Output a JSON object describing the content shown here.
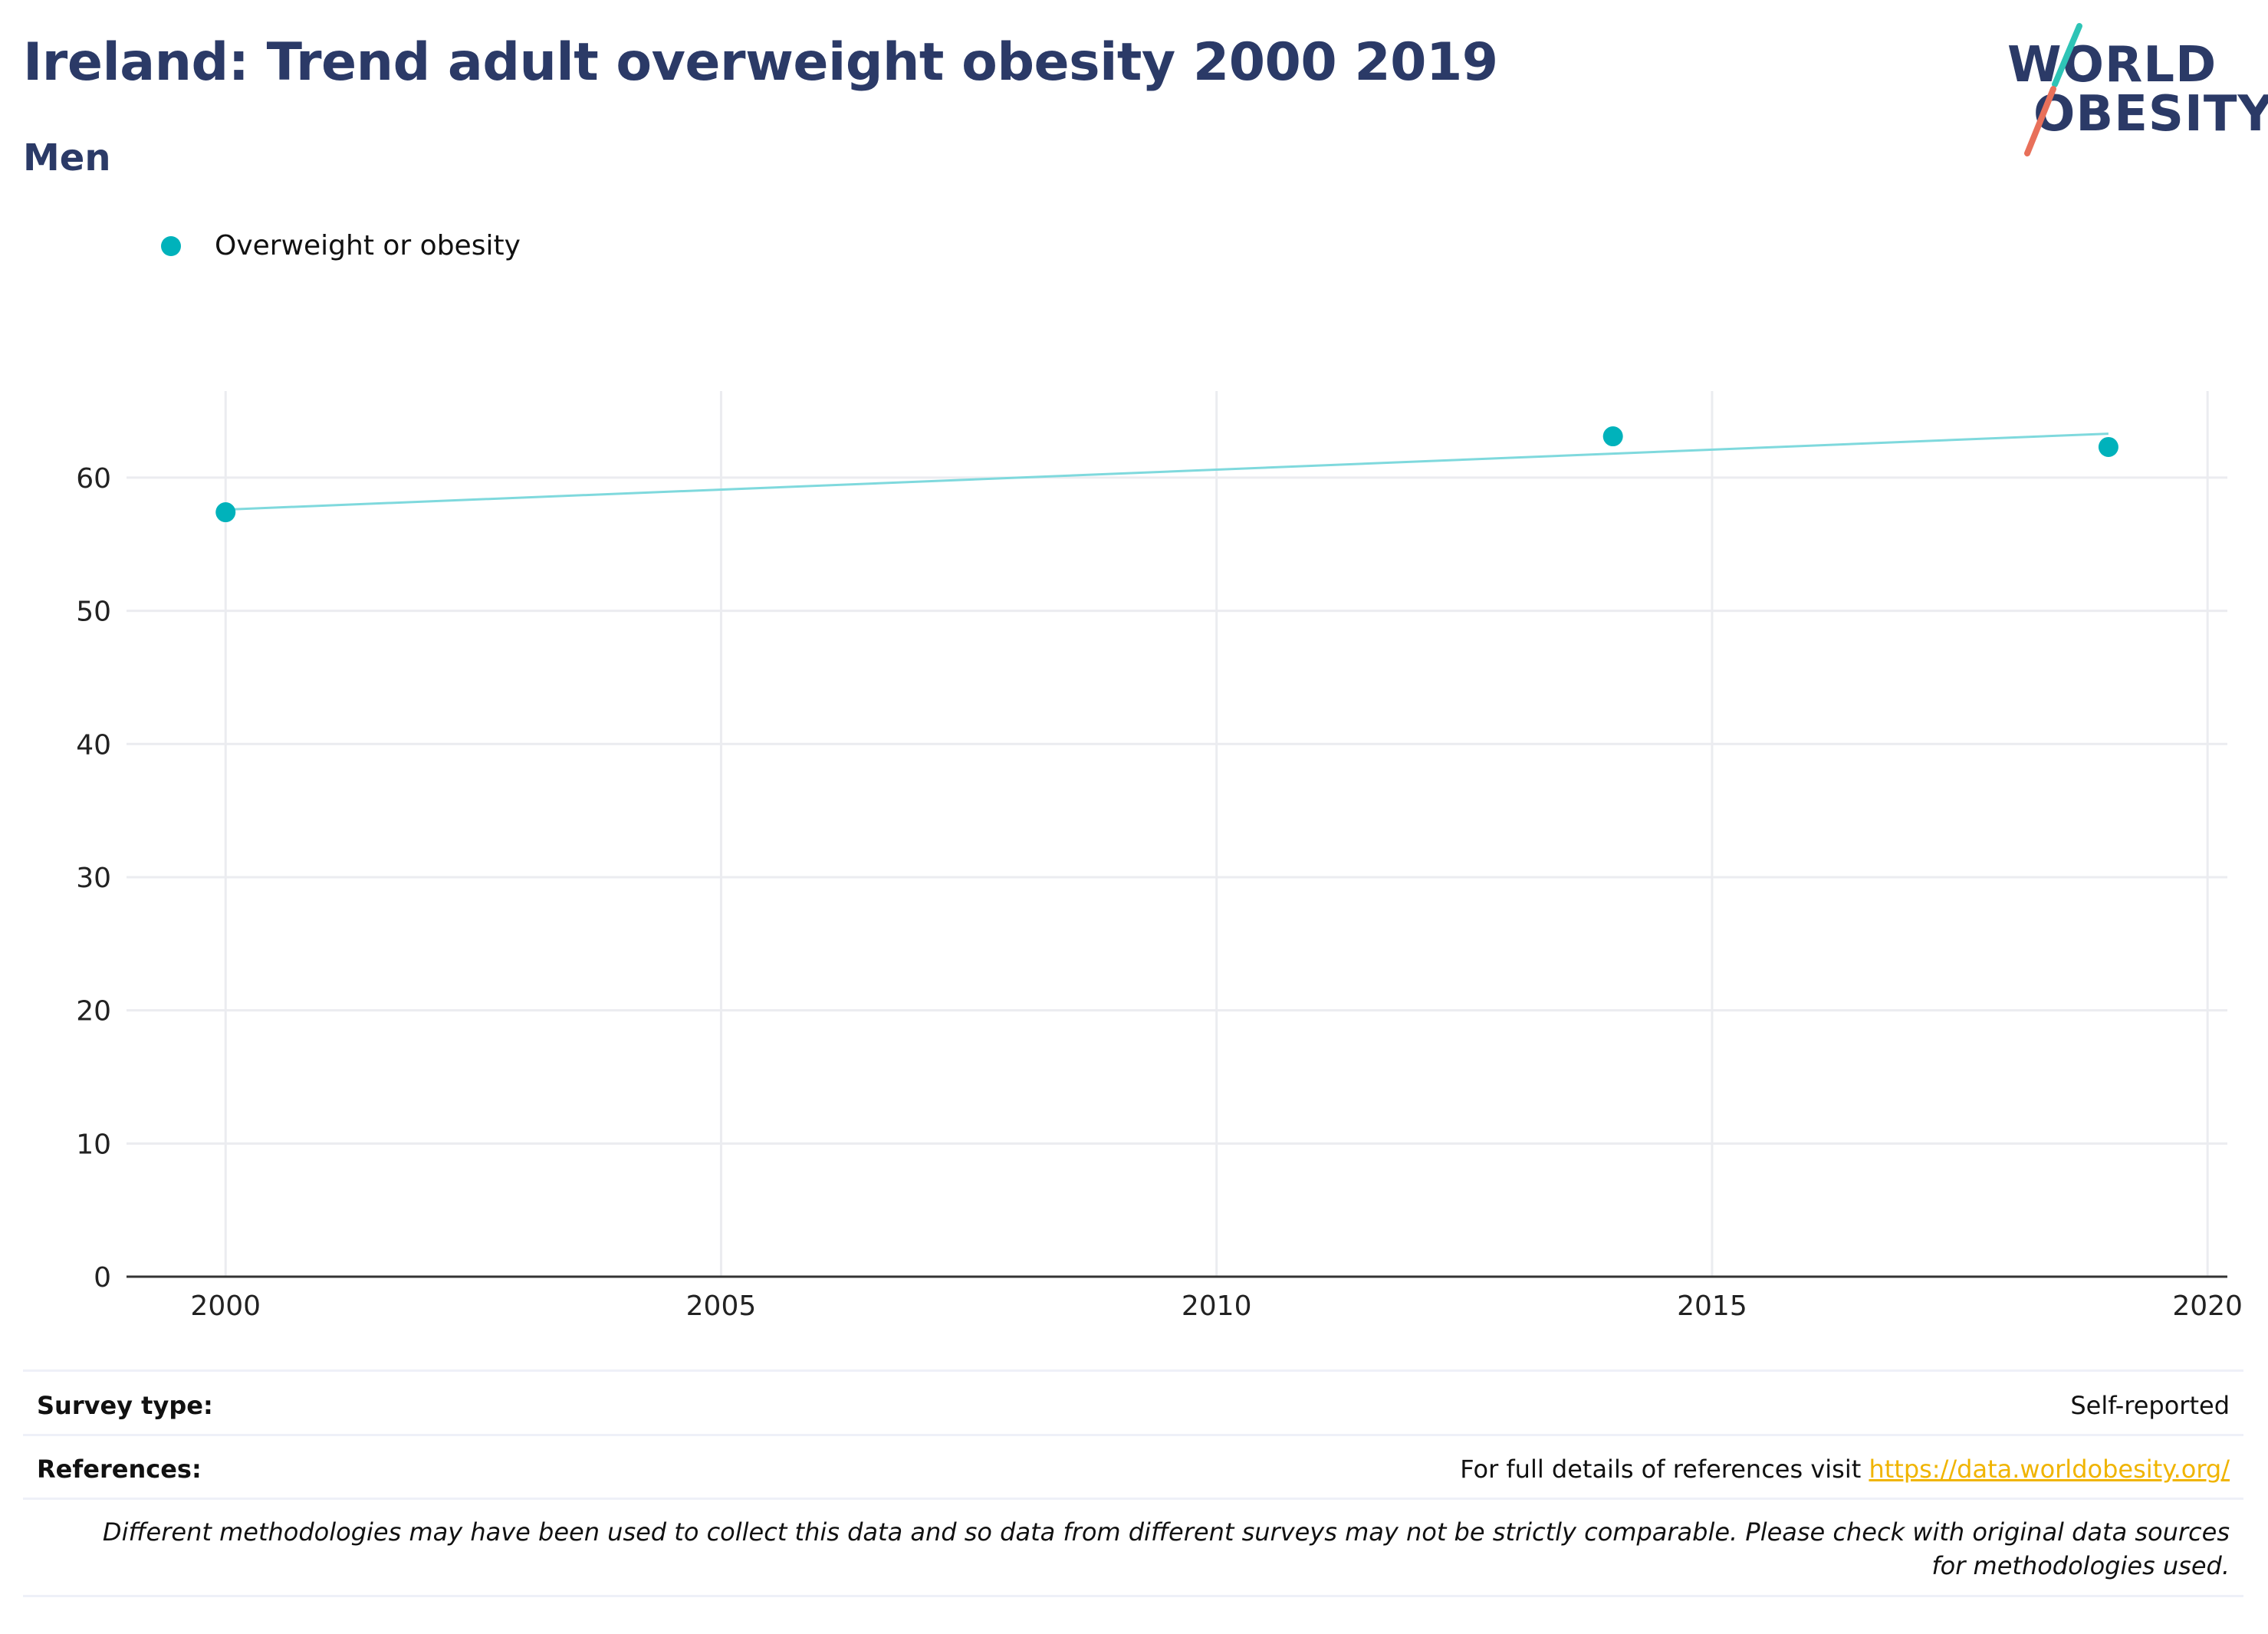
{
  "header": {
    "title": "Ireland: Trend adult overweight obesity 2000 2019",
    "subtitle": "Men"
  },
  "logo": {
    "line1": "WORLD",
    "line2": "OBESITY",
    "colors": {
      "text": "#2b3a67",
      "teal": "#2ec4b6",
      "coral": "#e8705a"
    }
  },
  "legend": {
    "label": "Overweight or obesity",
    "color": "#00b2bb"
  },
  "chart_data": {
    "type": "scatter",
    "title": "Ireland: Trend adult overweight obesity 2000 2019",
    "subtitle": "Men",
    "xlabel": "",
    "ylabel": "",
    "xlim": [
      1999.0,
      2020.2
    ],
    "ylim": [
      0,
      66.5
    ],
    "x_ticks": [
      2000,
      2005,
      2010,
      2015,
      2020
    ],
    "y_ticks": [
      0,
      10,
      20,
      30,
      40,
      50,
      60
    ],
    "grid": true,
    "legend_position": "top-left",
    "series": [
      {
        "name": "Overweight or obesity",
        "color": "#00b2bb",
        "points": [
          {
            "x": 2000,
            "y": 57.4
          },
          {
            "x": 2014,
            "y": 63.1
          },
          {
            "x": 2019,
            "y": 62.3
          }
        ]
      }
    ],
    "trendline": {
      "color": "#7fd9dd",
      "points": [
        {
          "x": 2000,
          "y": 57.6
        },
        {
          "x": 2019,
          "y": 63.3
        }
      ]
    }
  },
  "footer": {
    "survey_label": "Survey type:",
    "survey_value": "Self-reported",
    "references_label": "References:",
    "references_text": "For full details of references visit",
    "references_link": "https://data.worldobesity.org/",
    "note": "Different methodologies may have been used to collect this data and so data from different surveys may not be strictly comparable. Please check with original data sources for methodologies used."
  }
}
